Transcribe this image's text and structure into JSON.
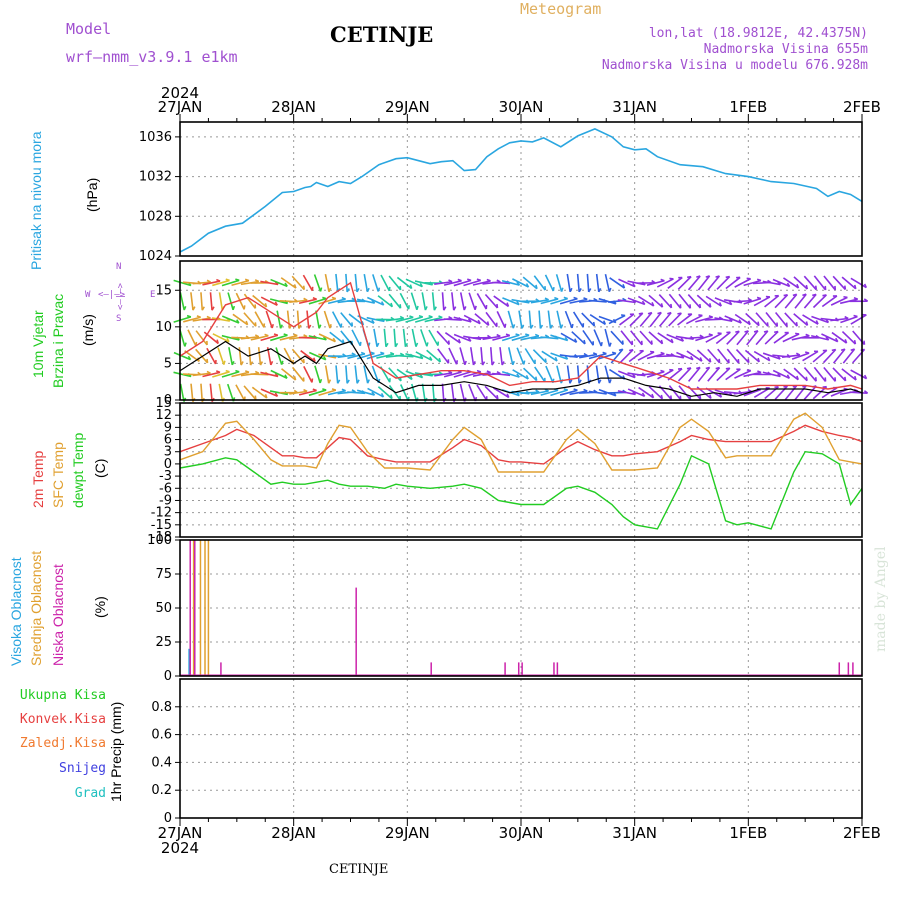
{
  "header": {
    "model_label": "Model",
    "model_name": "wrf–nmm_v3.9.1  e1km",
    "station": "CETINJE",
    "meteogram": "Meteogram",
    "lonlat": "lon,lat (18.9812E, 42.4375N)",
    "elevation": "Nadmorska Visina 655m",
    "model_elevation": "Nadmorska Visina u modelu 676.928m"
  },
  "footer": {
    "station": "CETINJE"
  },
  "credit": "made by Angel",
  "time_axis": {
    "year": "2024",
    "labels": [
      "27JAN",
      "28JAN",
      "29JAN",
      "30JAN",
      "31JAN",
      "1FEB",
      "2FEB"
    ]
  },
  "colors": {
    "pressure": "#2aa6e0",
    "wind_speed": "#000000",
    "wind_gust": "#e64040",
    "temp2m": "#e64040",
    "sfc_temp": "#e0a030",
    "dewpoint": "#22cc22",
    "high_cloud": "#2aa6e0",
    "mid_cloud": "#e0a030",
    "low_cloud": "#cc22aa",
    "total_precip": "#22cc22",
    "conv_precip": "#e64040",
    "frz_precip": "#f07a30",
    "snow": "#4040e0",
    "graupel": "#20c0c0"
  },
  "panels": {
    "pressure": {
      "label_line1": "Pritisak na nivou mora",
      "unit": "(hPa)"
    },
    "wind": {
      "label_line1": "10m Vjetar",
      "label_line2": "Brzina i Pravac",
      "unit": "(m/s)",
      "compass_n": "N",
      "compass_s": "S",
      "compass_w": "W",
      "compass_e": "E",
      "compass_arrow_h": "<–|–>",
      "compass_arrow_v": "<–|–>"
    },
    "temp": {
      "label_line1": "2m Temp",
      "label_line2": "SFC Temp",
      "label_line3": "dewpt Temp",
      "unit": "(C)"
    },
    "cloud": {
      "label_line1": "Visoka Oblacnost",
      "label_line2": "Srednja Oblacnost",
      "label_line3": "Niska Oblacnost",
      "unit": "(%)"
    },
    "precip": {
      "legend": [
        "Ukupna Kisa",
        "Konvek.Kisa",
        "Zaledj.Kisa",
        "Snijeg",
        "Grad"
      ],
      "unit": "1hr Precip (mm)"
    }
  },
  "chart_data": [
    {
      "type": "line",
      "panel": "pressure",
      "ylim": [
        1024,
        1037.5
      ],
      "yticks": [
        1024,
        1028,
        1032,
        1036
      ],
      "x_days": [
        0,
        0.1,
        0.25,
        0.4,
        0.55,
        0.75,
        0.9,
        1.0,
        1.1,
        1.15,
        1.2,
        1.3,
        1.4,
        1.5,
        1.6,
        1.75,
        1.9,
        2.0,
        2.1,
        2.2,
        2.3,
        2.4,
        2.5,
        2.6,
        2.7,
        2.8,
        2.9,
        3.0,
        3.1,
        3.2,
        3.35,
        3.5,
        3.65,
        3.8,
        3.9,
        4.0,
        4.1,
        4.2,
        4.4,
        4.6,
        4.8,
        5.0,
        5.2,
        5.4,
        5.6,
        5.7,
        5.8,
        5.9,
        6.0
      ],
      "series": [
        {
          "values": [
            1024.4,
            1025.0,
            1026.3,
            1027.0,
            1027.3,
            1029.0,
            1030.4,
            1030.5,
            1030.9,
            1031.0,
            1031.4,
            1031.0,
            1031.5,
            1031.3,
            1032.0,
            1033.2,
            1033.8,
            1033.9,
            1033.6,
            1033.3,
            1033.5,
            1033.6,
            1032.6,
            1032.7,
            1034.0,
            1034.8,
            1035.4,
            1035.6,
            1035.5,
            1035.9,
            1035.0,
            1036.1,
            1036.8,
            1036.0,
            1035.0,
            1034.7,
            1034.8,
            1034.0,
            1033.2,
            1033.0,
            1032.3,
            1032.0,
            1031.5,
            1031.3,
            1030.8,
            1030.0,
            1030.5,
            1030.2,
            1029.5
          ]
        }
      ]
    },
    {
      "type": "line",
      "panel": "wind",
      "ylim": [
        0,
        19
      ],
      "yticks": [
        0,
        5,
        10,
        15
      ],
      "x_days": [
        0,
        0.2,
        0.4,
        0.6,
        0.8,
        1.0,
        1.1,
        1.2,
        1.3,
        1.5,
        1.7,
        1.9,
        2.1,
        2.3,
        2.5,
        2.7,
        2.9,
        3.1,
        3.3,
        3.5,
        3.7,
        3.9,
        4.1,
        4.3,
        4.5,
        4.7,
        4.9,
        5.1,
        5.3,
        5.5,
        5.7,
        5.9,
        6.0
      ],
      "series": [
        {
          "values": [
            4,
            6,
            8,
            6,
            7,
            5,
            6,
            5,
            7,
            8,
            3,
            1,
            2,
            2,
            2.5,
            2,
            1,
            1.5,
            1.5,
            2,
            3,
            3,
            2,
            1.5,
            0.5,
            1,
            0.5,
            1.5,
            1.5,
            1.5,
            1,
            1.5,
            1
          ]
        },
        {
          "values": [
            6,
            8,
            13,
            14,
            12,
            10,
            11,
            12,
            14,
            16,
            5,
            3,
            3.5,
            4,
            4,
            3.5,
            2,
            2.5,
            2.5,
            3,
            6,
            5,
            4,
            3,
            1.5,
            1.5,
            1.5,
            2,
            2,
            2,
            1.5,
            2,
            1.5
          ]
        }
      ]
    },
    {
      "type": "line",
      "panel": "temp",
      "ylim": [
        -18,
        15
      ],
      "yticks": [
        -18,
        -15,
        -12,
        -9,
        -6,
        -3,
        0,
        3,
        6,
        9,
        12,
        15
      ],
      "x_days": [
        0,
        0.2,
        0.4,
        0.5,
        0.65,
        0.8,
        0.9,
        1.0,
        1.1,
        1.2,
        1.3,
        1.4,
        1.5,
        1.65,
        1.8,
        1.9,
        2.0,
        2.2,
        2.4,
        2.5,
        2.65,
        2.8,
        2.9,
        3.0,
        3.2,
        3.4,
        3.5,
        3.65,
        3.8,
        3.9,
        4.0,
        4.2,
        4.4,
        4.5,
        4.65,
        4.8,
        4.9,
        5.0,
        5.2,
        5.4,
        5.5,
        5.65,
        5.8,
        5.9,
        6.0
      ],
      "series": [
        {
          "values": [
            3,
            5,
            7,
            8.5,
            7,
            4,
            2,
            2,
            1.5,
            1.5,
            4,
            6.5,
            6,
            2,
            1,
            0.5,
            0.5,
            0.5,
            4,
            6,
            4.5,
            1,
            0.5,
            0.5,
            0,
            4,
            5.5,
            3.5,
            2,
            2,
            2.5,
            3,
            5.5,
            7,
            6,
            5.5,
            5.5,
            5.5,
            5.5,
            8,
            9.5,
            8,
            7,
            6.5,
            5.5
          ]
        },
        {
          "values": [
            1,
            3,
            10,
            10.5,
            6,
            1,
            -0.5,
            -0.5,
            -0.5,
            -1,
            5,
            9.5,
            9,
            3,
            -1,
            -1,
            -1,
            -1.5,
            6,
            9,
            6,
            -2,
            -2,
            -2,
            -2,
            6,
            8.5,
            5,
            -1.5,
            -1.5,
            -1.5,
            -1,
            9,
            11,
            8,
            1.5,
            2,
            2,
            2,
            11,
            12.5,
            9,
            1,
            0.5,
            0
          ]
        },
        {
          "values": [
            -1,
            0,
            1.5,
            1,
            -2,
            -5,
            -4.5,
            -5,
            -5,
            -4.5,
            -4,
            -5,
            -5.5,
            -5.5,
            -6,
            -5,
            -5.5,
            -6,
            -5.5,
            -5,
            -6,
            -9,
            -9.5,
            -10,
            -10,
            -6,
            -5.5,
            -7,
            -10,
            -13,
            -15,
            -16,
            -5,
            2,
            0,
            -14,
            -15,
            -14.5,
            -16,
            -2,
            3,
            2.5,
            0,
            -10,
            -6
          ]
        }
      ]
    },
    {
      "type": "bar",
      "panel": "cloud",
      "ylim": [
        0,
        100
      ],
      "yticks": [
        0,
        25,
        50,
        75,
        100
      ],
      "series": [
        {
          "name": "high",
          "x_days": [
            0.08
          ],
          "values": [
            20
          ]
        },
        {
          "name": "mid",
          "x_days": [
            0.12,
            0.18,
            0.22,
            0.25
          ],
          "values": [
            100,
            100,
            100,
            100
          ]
        },
        {
          "name": "low",
          "x_days": [
            0.09,
            0.13,
            0.36,
            1.55,
            2.21,
            2.86,
            2.98,
            3.01,
            3.29,
            3.32,
            5.8,
            5.88,
            5.92
          ],
          "values": [
            100,
            100,
            10,
            65,
            10,
            10,
            10,
            10,
            10,
            10,
            10,
            10,
            10
          ]
        }
      ]
    },
    {
      "type": "bar",
      "panel": "precip",
      "ylim": [
        0,
        1
      ],
      "yticks": [
        0,
        0.2,
        0.4,
        0.6,
        0.8
      ],
      "series": [
        {
          "name": "Ukupna Kisa",
          "values": []
        }
      ]
    }
  ]
}
